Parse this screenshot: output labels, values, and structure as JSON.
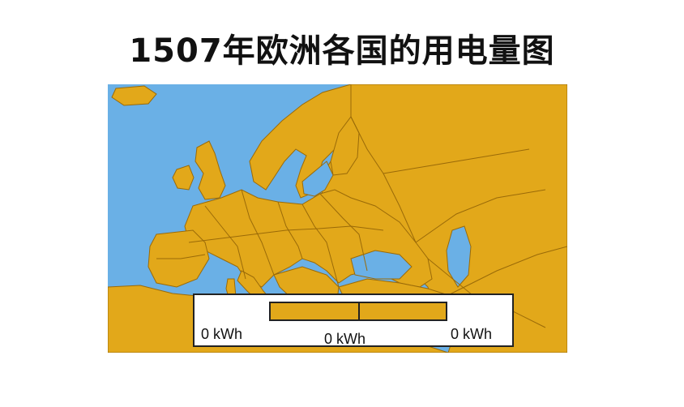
{
  "title": "1507年欧洲各国的用电量图",
  "colors": {
    "sea": "#6ab0e6",
    "land": "#e2a81a",
    "border": "#9a6a08",
    "legend_bar": "#e2a81a"
  },
  "legend": {
    "left_label": "0 kWh",
    "middle_label": "0 kWh",
    "right_label": "0 kWh"
  }
}
